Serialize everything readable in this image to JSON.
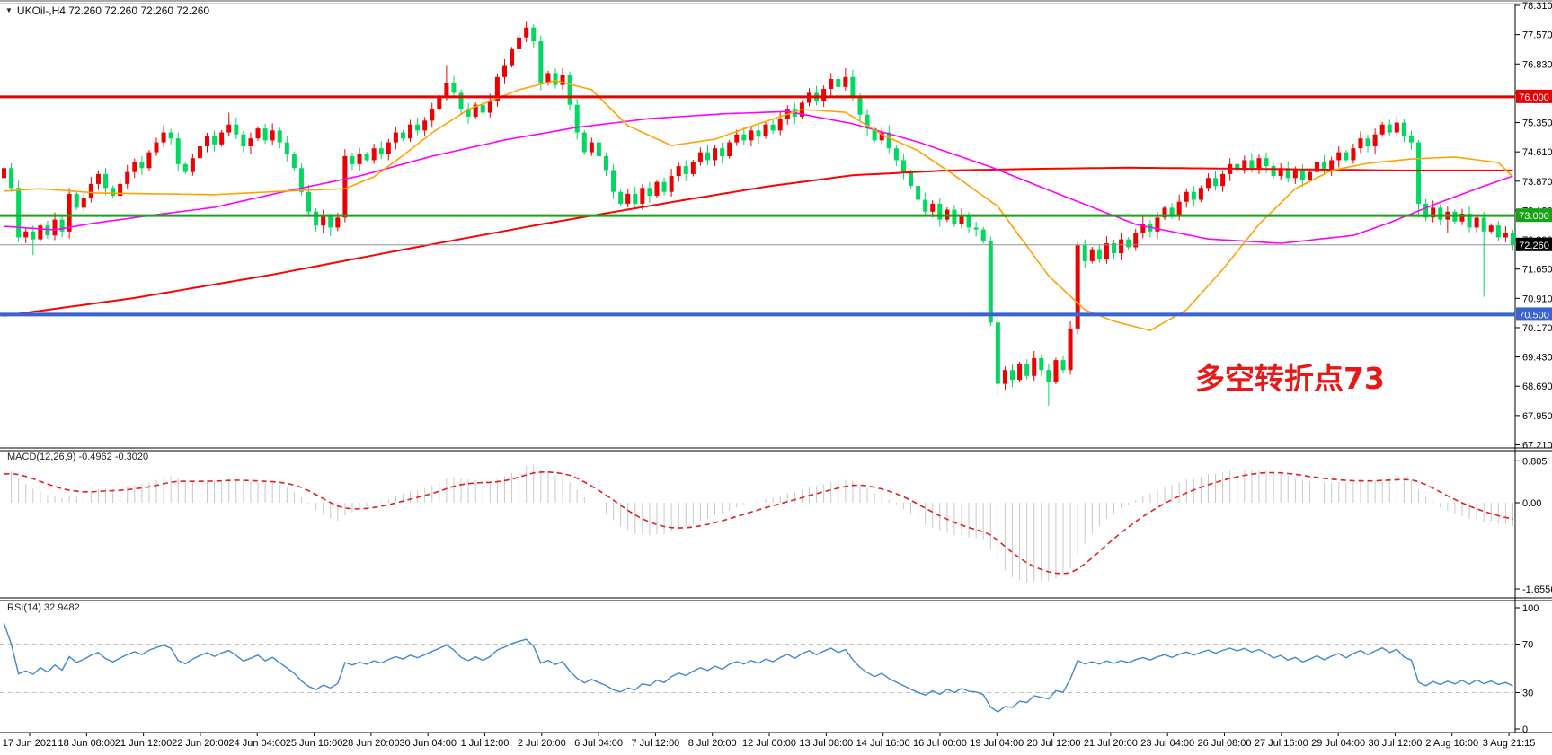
{
  "header": {
    "marker": "▼",
    "symbol_info": "UKOil-,H4  72.260 72.260 72.260 72.260"
  },
  "annotation": {
    "text": "多空转折点73",
    "color": "#E81818"
  },
  "indicators": {
    "macd": {
      "label_full": "MACD(12,26,9) -0.4962 -0.3020",
      "axis_labels": [
        "0.805",
        "0.00",
        "-1.6556"
      ],
      "axis_values": [
        0.805,
        0,
        -1.6556
      ]
    },
    "rsi": {
      "label_full": "RSI(14) 32.9482",
      "axis_labels": [
        "100",
        "70",
        "30",
        "0"
      ],
      "axis_values": [
        100,
        70,
        30,
        0
      ],
      "level_lines": [
        70,
        30
      ]
    }
  },
  "price_axis": {
    "labels": [
      "78.310",
      "77.570",
      "76.830",
      "76.090",
      "75.350",
      "74.610",
      "73.870",
      "73.130",
      "72.390",
      "71.650",
      "70.910",
      "70.170",
      "69.430",
      "68.690",
      "67.950",
      "67.210"
    ],
    "values": [
      78.31,
      77.57,
      76.83,
      76.09,
      75.35,
      74.61,
      73.87,
      73.13,
      72.39,
      71.65,
      70.91,
      70.17,
      69.43,
      68.69,
      67.95,
      67.21
    ]
  },
  "time_axis": {
    "labels": [
      "17 Jun 2021",
      "18 Jun 08:00",
      "21 Jun 12:00",
      "22 Jun 20:00",
      "24 Jun 04:00",
      "25 Jun 16:00",
      "28 Jun 20:00",
      "30 Jun 04:00",
      "1 Jul 12:00",
      "2 Jul 20:00",
      "6 Jul 04:00",
      "7 Jul 12:00",
      "8 Jul 20:00",
      "12 Jul 00:00",
      "13 Jul 08:00",
      "14 Jul 16:00",
      "16 Jul 00:00",
      "19 Jul 04:00",
      "20 Jul 12:00",
      "21 Jul 20:00",
      "23 Jul 04:00",
      "26 Jul 08:00",
      "27 Jul 16:00",
      "29 Jul 04:00",
      "30 Jul 12:00",
      "2 Aug 16:00",
      "3 Aug 21:15"
    ]
  },
  "hlines": [
    {
      "price": 76.0,
      "label": "76.000",
      "color": "#E60000",
      "width": 3,
      "badge_bg": "#E60000",
      "badge_fg": "#FFFFFF"
    },
    {
      "price": 73.0,
      "label": "73.000",
      "color": "#17A317",
      "width": 3,
      "badge_bg": "#17A317",
      "badge_fg": "#FFFFFF"
    },
    {
      "price": 72.26,
      "label": "72.260",
      "color": "#909090",
      "width": 1,
      "badge_bg": "#000000",
      "badge_fg": "#FFFFFF"
    },
    {
      "price": 70.5,
      "label": "70.500",
      "color": "#3A62D0",
      "width": 4,
      "badge_bg": "#3A62D0",
      "badge_fg": "#FFFFFF"
    }
  ],
  "colors": {
    "up_candle": "#ED0000",
    "down_candle": "#00D95F",
    "ma_fast_orange": "#FFA200",
    "ma_mid_magenta": "#FF00FF",
    "ma_slow_red": "#FF0000",
    "macd_hist": "#C8C8C8",
    "macd_signal": "#E02020",
    "rsi_line": "#4287D0",
    "level_dash": "#C0C0C0",
    "frame": "#000000"
  },
  "chart_data": {
    "type": "candlestick",
    "symbol": "UKOil-",
    "timeframe": "H4",
    "ylim": [
      67.21,
      78.31
    ],
    "first_open": 73.95,
    "open_rule": "previous_close",
    "closes": [
      74.2,
      73.7,
      72.45,
      72.6,
      72.4,
      72.75,
      72.5,
      72.9,
      72.6,
      73.55,
      73.2,
      73.45,
      73.8,
      74.05,
      73.7,
      73.5,
      73.8,
      74.1,
      74.35,
      74.2,
      74.6,
      74.85,
      75.1,
      74.95,
      74.3,
      74.1,
      74.45,
      74.75,
      75.0,
      74.8,
      75.1,
      75.3,
      75.05,
      74.75,
      74.95,
      75.2,
      74.9,
      75.15,
      74.85,
      74.55,
      74.2,
      73.6,
      73.1,
      72.75,
      73.0,
      72.7,
      72.95,
      74.5,
      74.3,
      74.55,
      74.4,
      74.7,
      74.55,
      74.85,
      75.1,
      74.95,
      75.3,
      75.15,
      75.4,
      75.7,
      76.0,
      76.35,
      76.1,
      75.7,
      75.5,
      75.8,
      75.6,
      75.9,
      76.5,
      76.8,
      77.2,
      77.5,
      77.75,
      77.4,
      76.35,
      76.6,
      76.3,
      76.55,
      75.8,
      75.1,
      74.6,
      74.85,
      74.5,
      74.15,
      73.6,
      73.3,
      73.55,
      73.3,
      73.7,
      73.5,
      73.85,
      73.6,
      74.0,
      74.25,
      74.05,
      74.35,
      74.6,
      74.4,
      74.7,
      74.5,
      74.85,
      75.05,
      74.9,
      75.15,
      75.0,
      75.3,
      75.15,
      75.45,
      75.7,
      75.5,
      75.85,
      76.1,
      75.9,
      76.2,
      76.45,
      76.25,
      76.5,
      76.0,
      75.55,
      75.2,
      74.9,
      75.1,
      74.7,
      74.4,
      74.1,
      73.75,
      73.4,
      73.1,
      73.3,
      72.9,
      73.15,
      72.8,
      73.0,
      72.7,
      72.65,
      72.35,
      70.3,
      68.75,
      69.1,
      68.85,
      69.25,
      68.95,
      69.4,
      69.1,
      68.8,
      69.35,
      69.1,
      70.15,
      72.25,
      71.85,
      72.15,
      71.9,
      72.3,
      72.05,
      72.4,
      72.2,
      72.55,
      72.8,
      72.6,
      72.95,
      73.2,
      73.0,
      73.35,
      73.6,
      73.4,
      73.7,
      73.95,
      73.75,
      74.05,
      74.3,
      74.15,
      74.4,
      74.2,
      74.45,
      74.25,
      74.0,
      74.2,
      73.95,
      74.15,
      73.9,
      74.1,
      74.35,
      74.15,
      74.4,
      74.6,
      74.4,
      74.7,
      74.95,
      74.75,
      75.05,
      75.3,
      75.1,
      75.35,
      75.0,
      74.85,
      73.3,
      72.95,
      73.2,
      72.9,
      73.1,
      72.85,
      73.05,
      72.7,
      72.95,
      72.6,
      72.75,
      72.45,
      72.55,
      72.26
    ],
    "warmup_closes": [
      71.2,
      71.35,
      71.5,
      71.4,
      71.65,
      71.8,
      71.7,
      71.95,
      72.1,
      72.3,
      72.2,
      72.45,
      72.6,
      72.5,
      72.75,
      72.9,
      73.1,
      73.0,
      73.25,
      73.4,
      73.3,
      73.55,
      73.7,
      73.9,
      74.1,
      74.2
    ],
    "wick_overrides": {
      "0": [
        74.45,
        null
      ],
      "4": [
        null,
        72.0
      ],
      "31": [
        75.6,
        null
      ],
      "45": [
        null,
        72.48
      ],
      "61": [
        76.8,
        null
      ],
      "72": [
        77.92,
        null
      ],
      "116": [
        76.72,
        null
      ],
      "137": [
        null,
        68.45
      ],
      "144": [
        null,
        68.2
      ],
      "195": [
        null,
        72.95
      ],
      "199": [
        null,
        72.55
      ],
      "204": [
        null,
        70.95
      ]
    },
    "ma_anchors": {
      "orange": [
        [
          0,
          73.62
        ],
        [
          5,
          73.68
        ],
        [
          13,
          73.57
        ],
        [
          29,
          73.53
        ],
        [
          41,
          73.64
        ],
        [
          47,
          73.68
        ],
        [
          51,
          73.98
        ],
        [
          55,
          74.52
        ],
        [
          59,
          75.09
        ],
        [
          64,
          75.68
        ],
        [
          71,
          76.18
        ],
        [
          76,
          76.41
        ],
        [
          81,
          76.18
        ],
        [
          86,
          75.27
        ],
        [
          92,
          74.77
        ],
        [
          98,
          74.93
        ],
        [
          104,
          75.32
        ],
        [
          110,
          75.68
        ],
        [
          116,
          75.61
        ],
        [
          121,
          75.05
        ],
        [
          126,
          74.64
        ],
        [
          131,
          74.02
        ],
        [
          137,
          73.23
        ],
        [
          140,
          72.48
        ],
        [
          144,
          71.48
        ],
        [
          149,
          70.62
        ],
        [
          153,
          70.33
        ],
        [
          158,
          70.1
        ],
        [
          163,
          70.62
        ],
        [
          168,
          71.64
        ],
        [
          173,
          72.78
        ],
        [
          178,
          73.68
        ],
        [
          183,
          74.14
        ],
        [
          188,
          74.32
        ],
        [
          194,
          74.43
        ],
        [
          200,
          74.48
        ],
        [
          206,
          74.34
        ],
        [
          208,
          73.98
        ]
      ],
      "magenta": [
        [
          0,
          72.73
        ],
        [
          7,
          72.64
        ],
        [
          12,
          72.8
        ],
        [
          20,
          73.0
        ],
        [
          29,
          73.21
        ],
        [
          39,
          73.62
        ],
        [
          49,
          74.0
        ],
        [
          59,
          74.5
        ],
        [
          69,
          74.91
        ],
        [
          79,
          75.23
        ],
        [
          89,
          75.45
        ],
        [
          99,
          75.57
        ],
        [
          108,
          75.63
        ],
        [
          117,
          75.32
        ],
        [
          126,
          74.86
        ],
        [
          136,
          74.23
        ],
        [
          146,
          73.5
        ],
        [
          156,
          72.78
        ],
        [
          166,
          72.41
        ],
        [
          176,
          72.3
        ],
        [
          186,
          72.5
        ],
        [
          191,
          72.82
        ],
        [
          197,
          73.27
        ],
        [
          203,
          73.68
        ],
        [
          208,
          74.0
        ]
      ],
      "red": [
        [
          0,
          70.47
        ],
        [
          18,
          70.92
        ],
        [
          37,
          71.51
        ],
        [
          55,
          72.14
        ],
        [
          74,
          72.78
        ],
        [
          93,
          73.37
        ],
        [
          105,
          73.73
        ],
        [
          117,
          74.02
        ],
        [
          130,
          74.14
        ],
        [
          142,
          74.18
        ],
        [
          155,
          74.21
        ],
        [
          173,
          74.18
        ],
        [
          192,
          74.14
        ],
        [
          208,
          74.14
        ]
      ]
    }
  }
}
